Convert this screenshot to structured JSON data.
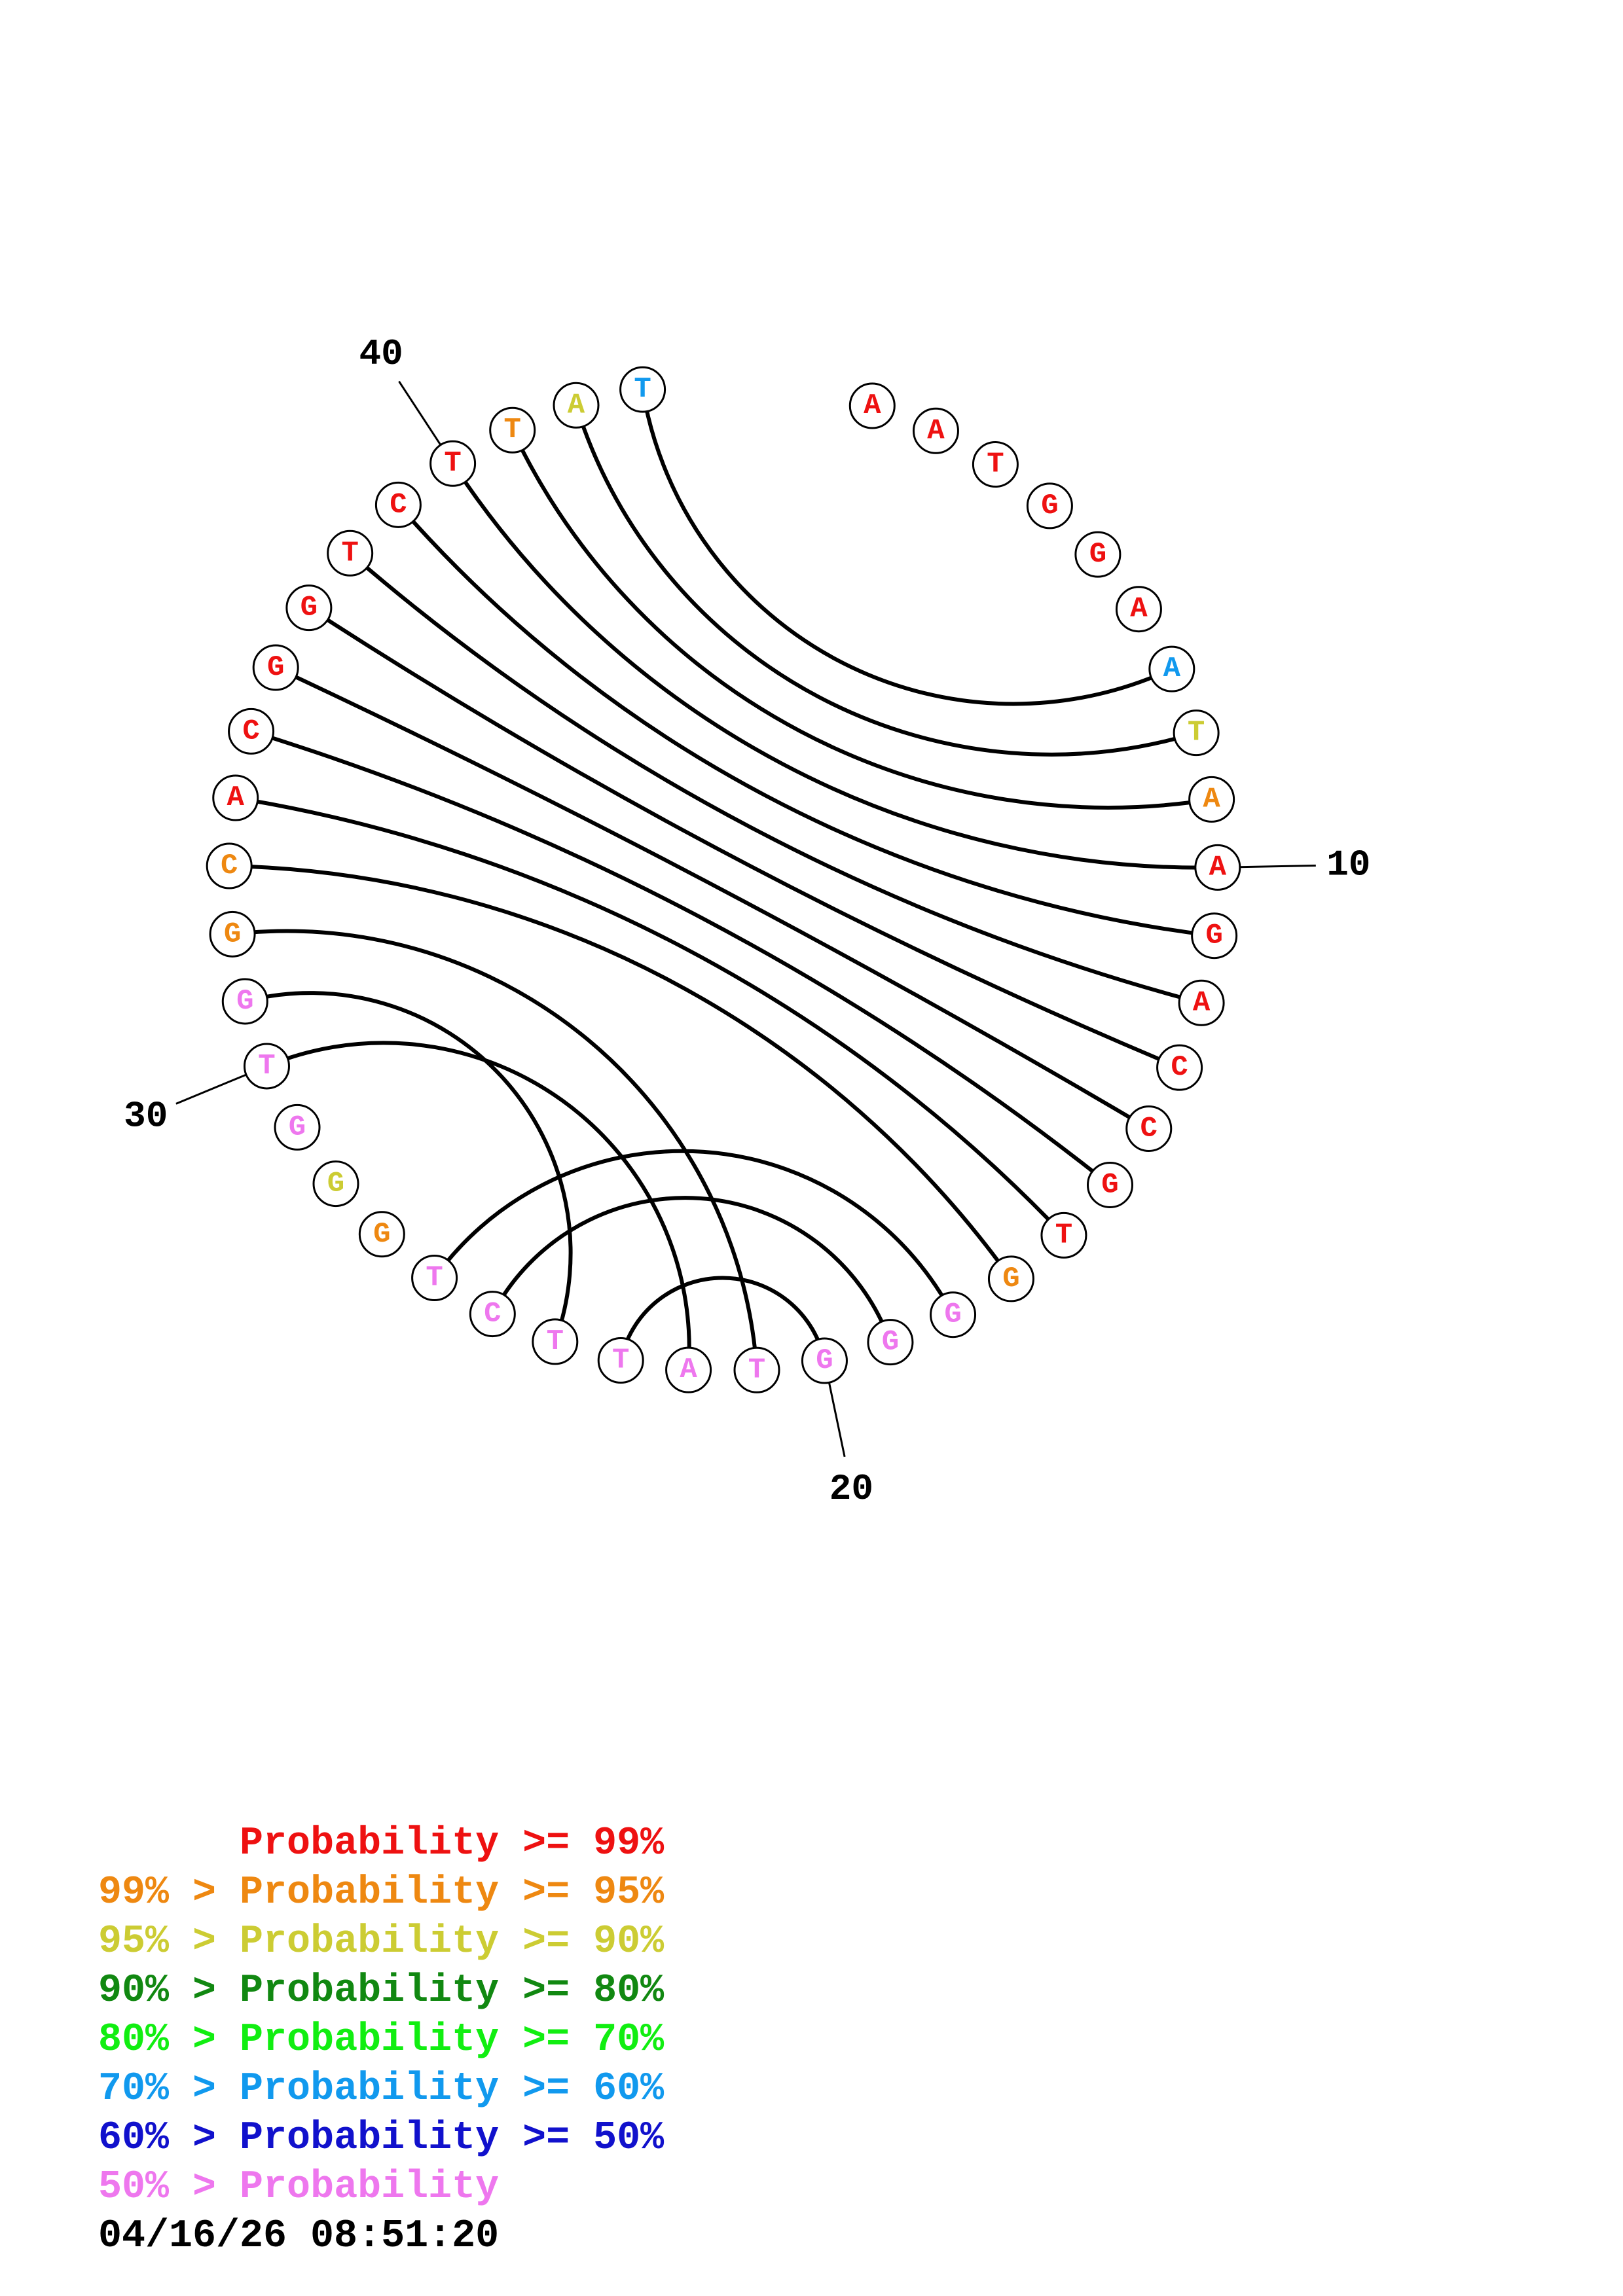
{
  "colors": {
    "p99": "#ee1111",
    "p95": "#ee8811",
    "p90": "#cccc33",
    "p80": "#118811",
    "p70": "#11ee11",
    "p60": "#1199ee",
    "p50": "#1111cc",
    "plow": "#ee77ee"
  },
  "sequence": [
    {
      "base": "A",
      "tier": "p99"
    },
    {
      "base": "A",
      "tier": "p99"
    },
    {
      "base": "T",
      "tier": "p99"
    },
    {
      "base": "G",
      "tier": "p99"
    },
    {
      "base": "G",
      "tier": "p99"
    },
    {
      "base": "A",
      "tier": "p99"
    },
    {
      "base": "A",
      "tier": "p60"
    },
    {
      "base": "T",
      "tier": "p90"
    },
    {
      "base": "A",
      "tier": "p95"
    },
    {
      "base": "A",
      "tier": "p99"
    },
    {
      "base": "G",
      "tier": "p99"
    },
    {
      "base": "A",
      "tier": "p99"
    },
    {
      "base": "C",
      "tier": "p99"
    },
    {
      "base": "C",
      "tier": "p99"
    },
    {
      "base": "G",
      "tier": "p99"
    },
    {
      "base": "T",
      "tier": "p99"
    },
    {
      "base": "G",
      "tier": "p95"
    },
    {
      "base": "G",
      "tier": "plow"
    },
    {
      "base": "G",
      "tier": "plow"
    },
    {
      "base": "G",
      "tier": "plow"
    },
    {
      "base": "T",
      "tier": "plow"
    },
    {
      "base": "A",
      "tier": "plow"
    },
    {
      "base": "T",
      "tier": "plow"
    },
    {
      "base": "T",
      "tier": "plow"
    },
    {
      "base": "C",
      "tier": "plow"
    },
    {
      "base": "T",
      "tier": "plow"
    },
    {
      "base": "G",
      "tier": "p95"
    },
    {
      "base": "G",
      "tier": "p90"
    },
    {
      "base": "G",
      "tier": "plow"
    },
    {
      "base": "T",
      "tier": "plow"
    },
    {
      "base": "G",
      "tier": "plow"
    },
    {
      "base": "G",
      "tier": "p95"
    },
    {
      "base": "C",
      "tier": "p95"
    },
    {
      "base": "A",
      "tier": "p99"
    },
    {
      "base": "C",
      "tier": "p99"
    },
    {
      "base": "G",
      "tier": "p99"
    },
    {
      "base": "G",
      "tier": "p99"
    },
    {
      "base": "T",
      "tier": "p99"
    },
    {
      "base": "C",
      "tier": "p99"
    },
    {
      "base": "T",
      "tier": "p99"
    },
    {
      "base": "T",
      "tier": "p95"
    },
    {
      "base": "A",
      "tier": "p90"
    },
    {
      "base": "T",
      "tier": "p60"
    }
  ],
  "pairs": [
    [
      7,
      43
    ],
    [
      8,
      42
    ],
    [
      9,
      41
    ],
    [
      10,
      40
    ],
    [
      11,
      39
    ],
    [
      12,
      38
    ],
    [
      13,
      37
    ],
    [
      14,
      36
    ],
    [
      15,
      35
    ],
    [
      16,
      34
    ],
    [
      17,
      33
    ],
    [
      18,
      26
    ],
    [
      19,
      25
    ],
    [
      20,
      23
    ],
    [
      22,
      30
    ],
    [
      24,
      31
    ],
    [
      21,
      32
    ]
  ],
  "position_labels": [
    {
      "pos": 10,
      "text": "10"
    },
    {
      "pos": 20,
      "text": "20"
    },
    {
      "pos": 30,
      "text": "30"
    },
    {
      "pos": 40,
      "text": "40"
    }
  ],
  "legend": [
    {
      "prefix": "     ",
      "text": "Probability >= 99%",
      "tier": "p99"
    },
    {
      "prefix": "99% > ",
      "text": "Probability >= 95%",
      "tier": "p95"
    },
    {
      "prefix": "95% > ",
      "text": "Probability >= 90%",
      "tier": "p90"
    },
    {
      "prefix": "90% > ",
      "text": "Probability >= 80%",
      "tier": "p80"
    },
    {
      "prefix": "80% > ",
      "text": "Probability >= 70%",
      "tier": "p70"
    },
    {
      "prefix": "70% > ",
      "text": "Probability >= 60%",
      "tier": "p60"
    },
    {
      "prefix": "60% > ",
      "text": "Probability >= 50%",
      "tier": "p50"
    },
    {
      "prefix": "50% > ",
      "text": "Probability",
      "tier": "plow"
    }
  ],
  "timestamp": "04/16/26 08:51:20"
}
